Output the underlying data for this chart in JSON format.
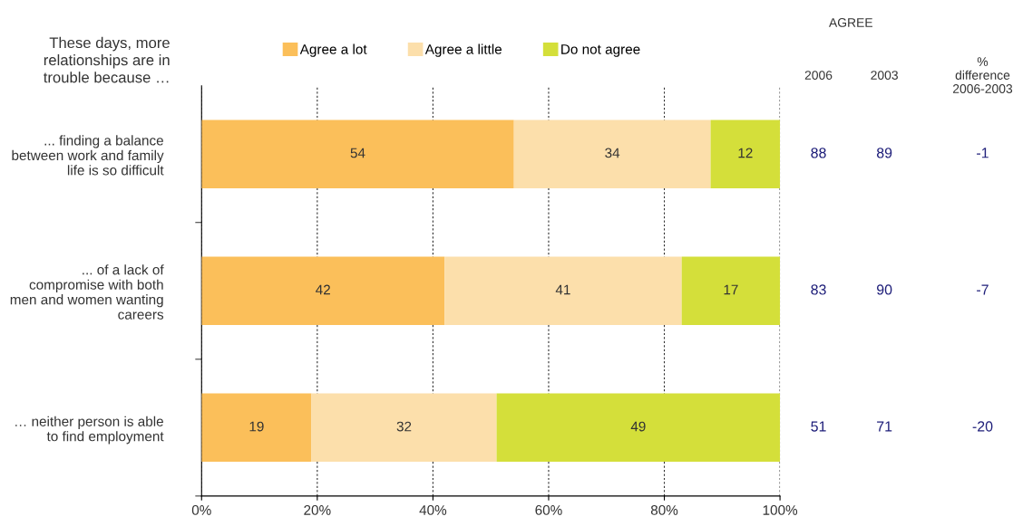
{
  "chart_data": {
    "type": "bar",
    "orientation": "horizontal",
    "stacked": true,
    "title": "These days, more\nrelationships are in\ntrouble because …",
    "categories": [
      "... finding a balance\nbetween work and family\nlife is so difficult",
      "... of a lack of\ncompromise with both\nmen and women wanting\ncareers",
      "… neither person is able\nto find employment"
    ],
    "series": [
      {
        "name": "Agree a lot",
        "color": "#fbbf5a",
        "values": [
          54,
          42,
          19
        ]
      },
      {
        "name": "Agree a little",
        "color": "#fcdfab",
        "values": [
          34,
          41,
          32
        ]
      },
      {
        "name": "Do not agree",
        "color": "#d4df3a",
        "values": [
          12,
          17,
          49
        ]
      }
    ],
    "xlim": [
      0,
      100
    ],
    "xticks": [
      {
        "value": 0,
        "label": "0%"
      },
      {
        "value": 20,
        "label": "20%"
      },
      {
        "value": 40,
        "label": "40%"
      },
      {
        "value": 60,
        "label": "60%"
      },
      {
        "value": 80,
        "label": "80%"
      },
      {
        "value": 100,
        "label": "100%"
      }
    ],
    "grid": "x",
    "legend": "top",
    "data_labels": true,
    "annotations": [
      "AGREE",
      "2006",
      "2003",
      "%\ndifference\n2006-2003",
      "88",
      "89",
      "-1",
      "83",
      "90",
      "-7",
      "51",
      "71",
      "-20"
    ]
  }
}
